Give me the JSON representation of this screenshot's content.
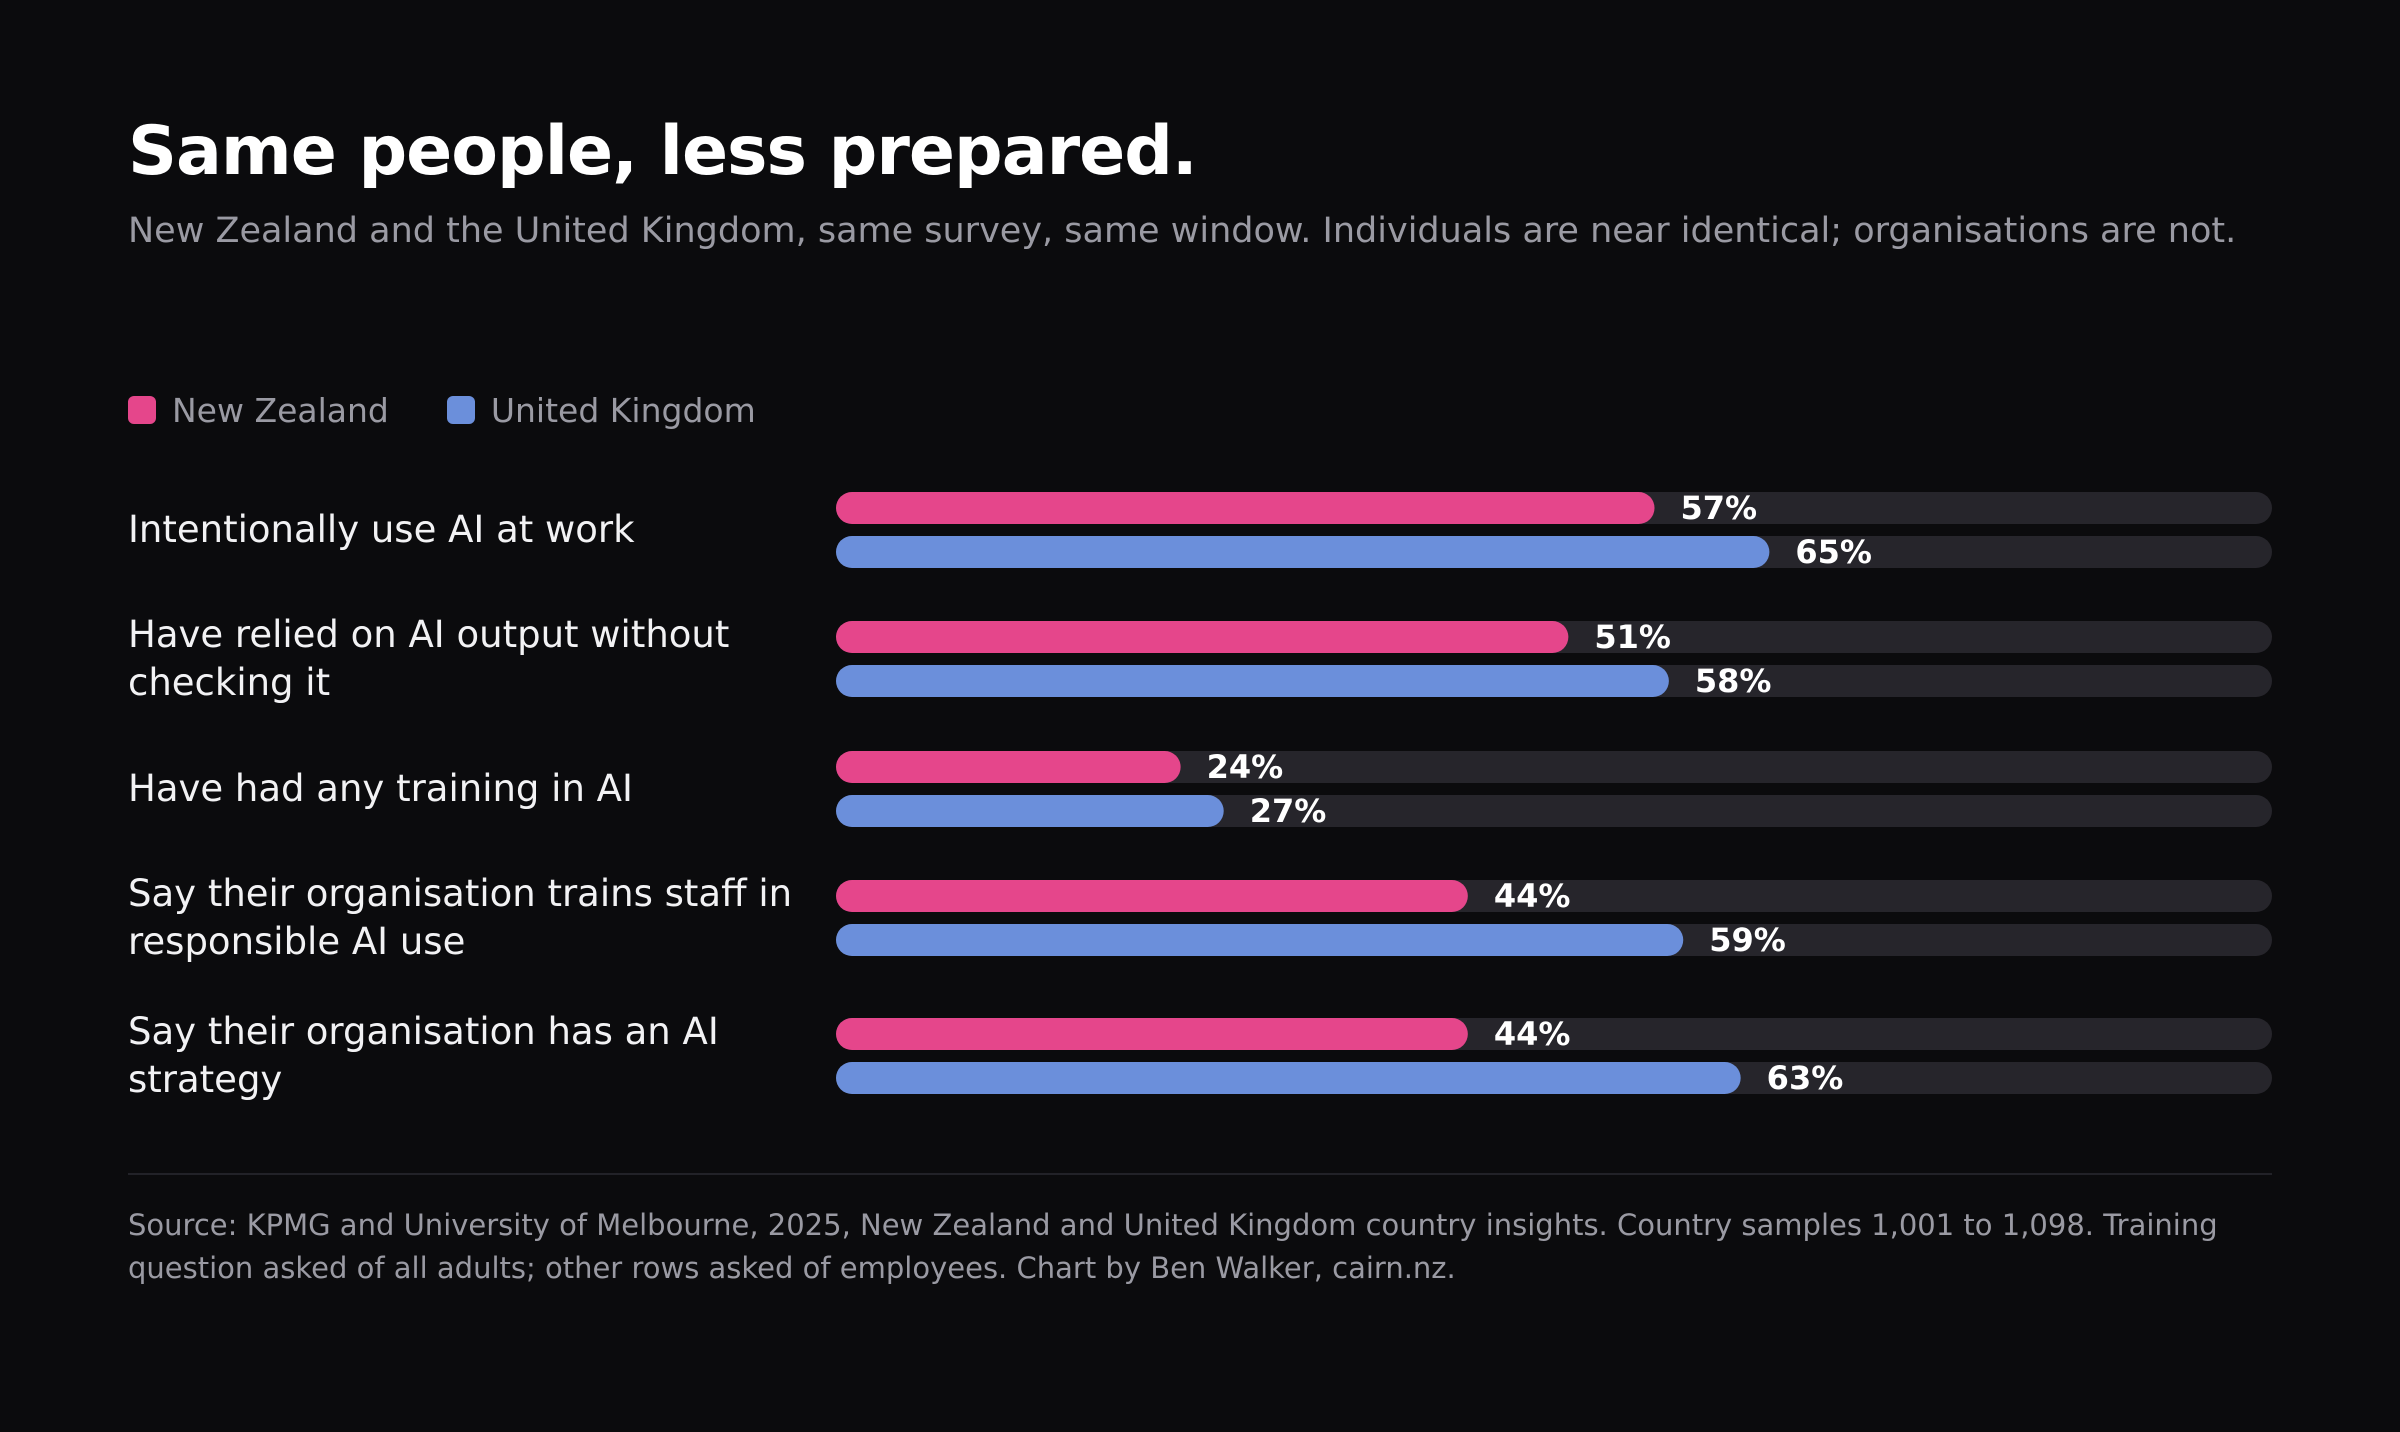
{
  "chart_data": {
    "type": "bar",
    "orientation": "horizontal",
    "title": "Same people, less prepared.",
    "subtitle": "New Zealand and the United Kingdom, same survey, same window. Individuals are near identical; organisations are not.",
    "categories": [
      "Intentionally use AI at work",
      "Have relied on AI output without checking it",
      "Have had any training in AI",
      "Say their organisation trains staff in responsible AI use",
      "Say their organisation has an AI strategy"
    ],
    "series": [
      {
        "name": "New Zealand",
        "color": "#e5468b",
        "values": [
          57,
          51,
          24,
          44,
          44
        ]
      },
      {
        "name": "United Kingdom",
        "color": "#6b8fdb",
        "values": [
          65,
          58,
          27,
          59,
          63
        ]
      }
    ],
    "value_suffix": "%",
    "xlim": [
      0,
      100
    ],
    "track_color": "#26252b",
    "grid": false,
    "legend_position": "top-left",
    "source": "Source: KPMG and University of Melbourne, 2025, New Zealand and United Kingdom country insights. Country samples 1,001 to 1,098. Training question asked of all adults; other rows asked of employees. Chart by Ben Walker, cairn.nz."
  }
}
